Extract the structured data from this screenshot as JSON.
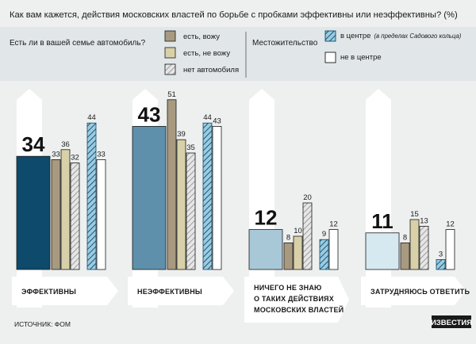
{
  "title": "Как вам кажется, действия московских властей по борьбе с пробками эффективны или неэффективны? (%)",
  "legend": {
    "car_question": "Есть ли в вашей семье автомобиль?",
    "car_items": [
      "есть, вожу",
      "есть, не вожу",
      "нет автомобиля"
    ],
    "residence_question": "Местожительство",
    "residence_items": [
      {
        "main": "в центре",
        "note": "(в пределах Садового кольца)"
      },
      {
        "main": "не в центре",
        "note": ""
      }
    ]
  },
  "source": "ИСТОЧНИК: ФОМ",
  "logo": "ИЗВЕСТИЯ",
  "colors": {
    "total_1": "#0d4a6b",
    "total_2": "#5e90ac",
    "total_3": "#a8c8d8",
    "total_4": "#d6e8f0",
    "drive": "#a89a80",
    "no_drive": "#d8d0a8",
    "no_car": "#e6e6e6",
    "center": "#9ccbe0",
    "not_center": "#ffffff",
    "background": "#eef0f0"
  },
  "chart_data": {
    "type": "bar",
    "title": "Как вам кажется, действия московских властей по борьбе с пробками эффективны или неэффективны? (%)",
    "categories": [
      "ЭФФЕКТИВНЫ",
      "НЕЭФФЕКТИВНЫ",
      "НИЧЕГО НЕ ЗНАЮ О ТАКИХ ДЕЙСТВИЯХ МОСКОВСКИХ ВЛАСТЕЙ",
      "ЗАТРУДНЯЮСЬ ОТВЕТИТЬ"
    ],
    "category_lines": [
      [
        "ЭФФЕКТИВНЫ"
      ],
      [
        "НЕЭФФЕКТИВНЫ"
      ],
      [
        "НИЧЕГО НЕ ЗНАЮ",
        "О ТАКИХ ДЕЙСТВИЯХ",
        "МОСКОВСКИХ ВЛАСТЕЙ"
      ],
      [
        "ЗАТРУДНЯЮСЬ ОТВЕТИТЬ"
      ]
    ],
    "totals": [
      34,
      43,
      12,
      11
    ],
    "series": [
      {
        "name": "есть, вожу",
        "values": [
          33,
          51,
          8,
          8
        ]
      },
      {
        "name": "есть, не вожу",
        "values": [
          36,
          39,
          10,
          15
        ]
      },
      {
        "name": "нет автомобиля",
        "values": [
          32,
          35,
          20,
          13
        ]
      },
      {
        "name": "в центре",
        "values": [
          44,
          44,
          9,
          3
        ]
      },
      {
        "name": "не в центре",
        "values": [
          33,
          43,
          12,
          12
        ]
      }
    ],
    "ylim": [
      0,
      55
    ],
    "legend_position": "top",
    "grid": false
  }
}
